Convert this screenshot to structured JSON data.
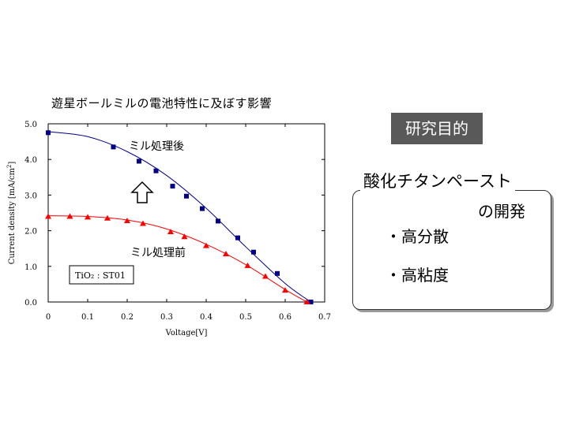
{
  "chart_data": {
    "type": "scatter",
    "title": "遊星ボールミルの電池特性に及ぼす影響",
    "xlabel": "Voltage[V]",
    "ylabel_main": "Current density [mA/cm",
    "ylabel_sup": "2",
    "ylabel_end": "]",
    "xlim": [
      0,
      0.7
    ],
    "ylim": [
      0,
      5
    ],
    "x_ticks": [
      0,
      0.1,
      0.2,
      0.3,
      0.4,
      0.5,
      0.6,
      0.7
    ],
    "x_tick_labels": [
      "0",
      "0.1",
      "0.2",
      "0.3",
      "0.4",
      "0.5",
      "0.6",
      "0.7"
    ],
    "y_ticks": [
      0,
      1,
      2,
      3,
      4,
      5
    ],
    "y_tick_labels": [
      "0.0",
      "1.0",
      "2.0",
      "3.0",
      "4.0",
      "5.0"
    ],
    "series": [
      {
        "name": "ミル処理後",
        "color": "#00008b",
        "marker": "square",
        "x": [
          0,
          0.165,
          0.23,
          0.273,
          0.315,
          0.35,
          0.39,
          0.43,
          0.48,
          0.52,
          0.58,
          0.665
        ],
        "y": [
          4.75,
          4.35,
          3.95,
          3.68,
          3.25,
          2.97,
          2.62,
          2.27,
          1.8,
          1.4,
          0.8,
          0
        ],
        "fit": [
          [
            0,
            4.78
          ],
          [
            0.1,
            4.64
          ],
          [
            0.2,
            4.22
          ],
          [
            0.3,
            3.55
          ],
          [
            0.4,
            2.63
          ],
          [
            0.5,
            1.55
          ],
          [
            0.6,
            0.52
          ],
          [
            0.665,
            0
          ]
        ]
      },
      {
        "name": "ミル処理前",
        "color": "#ff0000",
        "marker": "triangle",
        "x": [
          0,
          0.055,
          0.1,
          0.15,
          0.2,
          0.24,
          0.31,
          0.345,
          0.4,
          0.45,
          0.505,
          0.55,
          0.6,
          0.655
        ],
        "y": [
          2.4,
          2.4,
          2.38,
          2.35,
          2.28,
          2.2,
          1.97,
          1.83,
          1.58,
          1.35,
          1.02,
          0.72,
          0.33,
          0
        ],
        "fit": [
          [
            0,
            2.42
          ],
          [
            0.1,
            2.4
          ],
          [
            0.2,
            2.3
          ],
          [
            0.3,
            2.05
          ],
          [
            0.4,
            1.62
          ],
          [
            0.5,
            1.05
          ],
          [
            0.6,
            0.35
          ],
          [
            0.655,
            0
          ]
        ]
      }
    ],
    "annotation": "TiO₂ : ST01"
  },
  "panel": {
    "objective_label": "研究目的",
    "paste_title": "酸化チタンペースト",
    "paste_sub": "の開発",
    "bullets": [
      "・高分散",
      "・高粘度"
    ]
  }
}
